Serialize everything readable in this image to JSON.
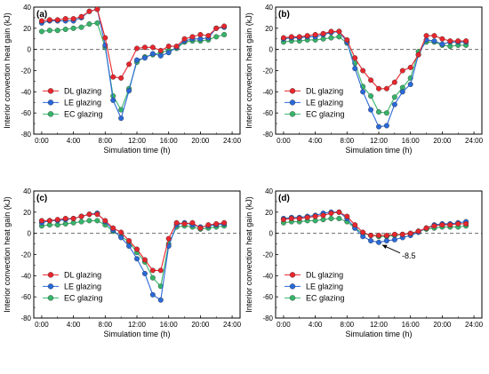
{
  "figure": {
    "ylabel": "Interior convection heat gain (kJ)",
    "xlabel": "Simulation time (h)"
  },
  "series_styles": [
    {
      "name": "DL glazing",
      "color": "#e8262d"
    },
    {
      "name": "LE glazing",
      "color": "#2a69d8"
    },
    {
      "name": "EC glazing",
      "color": "#37b46a"
    }
  ],
  "chart_data": [
    {
      "type": "line",
      "panel_label": "(a)",
      "x": [
        0,
        1,
        2,
        3,
        4,
        5,
        6,
        7,
        8,
        9,
        10,
        11,
        12,
        13,
        14,
        15,
        16,
        17,
        18,
        19,
        20,
        21,
        22,
        23
      ],
      "x_tick_labels": [
        "0:00",
        "4:00",
        "8:00",
        "12:00",
        "16:00",
        "20:00",
        "24:00"
      ],
      "x_ticks": [
        0,
        4,
        8,
        12,
        16,
        20,
        24
      ],
      "xlim": [
        -1,
        25
      ],
      "ylim": [
        -80,
        40
      ],
      "y_ticks": [
        -80,
        -60,
        -40,
        -20,
        0,
        20,
        40
      ],
      "legend": "lower-left",
      "series": [
        {
          "name": "DL glazing",
          "values": [
            27,
            28,
            28,
            29,
            29,
            31,
            36,
            38,
            11,
            -26,
            -27,
            -14,
            1,
            2,
            2,
            -1,
            3,
            3,
            10,
            12,
            14,
            13,
            20,
            22
          ]
        },
        {
          "name": "LE glazing",
          "values": [
            25,
            27,
            27,
            27,
            27,
            30,
            36,
            38,
            4,
            -48,
            -65,
            -39,
            -10,
            -8,
            -4,
            -6,
            -3,
            2,
            8,
            10,
            10,
            11,
            20,
            21
          ]
        },
        {
          "name": "EC glazing",
          "values": [
            17,
            18,
            18,
            19,
            20,
            21,
            24,
            25,
            2,
            -44,
            -57,
            -37,
            -12,
            -7,
            -5,
            -3,
            -1,
            1,
            7,
            8,
            8,
            9,
            12,
            14
          ]
        }
      ]
    },
    {
      "type": "line",
      "panel_label": "(b)",
      "x": [
        0,
        1,
        2,
        3,
        4,
        5,
        6,
        7,
        8,
        9,
        10,
        11,
        12,
        13,
        14,
        15,
        16,
        17,
        18,
        19,
        20,
        21,
        22,
        23
      ],
      "x_tick_labels": [
        "0:00",
        "4:00",
        "8:00",
        "12:00",
        "16:00",
        "20:00",
        "24:00"
      ],
      "x_ticks": [
        0,
        4,
        8,
        12,
        16,
        20,
        24
      ],
      "xlim": [
        -1,
        25
      ],
      "ylim": [
        -80,
        40
      ],
      "y_ticks": [
        -80,
        -60,
        -40,
        -20,
        0,
        20,
        40
      ],
      "legend": "lower-left",
      "series": [
        {
          "name": "DL glazing",
          "values": [
            11,
            12,
            12,
            13,
            14,
            15,
            17,
            17,
            9,
            -8,
            -20,
            -29,
            -37,
            -37,
            -31,
            -20,
            -17,
            -5,
            13,
            13,
            10,
            8,
            8,
            8
          ]
        },
        {
          "name": "LE glazing",
          "values": [
            10,
            11,
            11,
            12,
            12,
            14,
            16,
            17,
            7,
            -18,
            -40,
            -57,
            -73,
            -72,
            -52,
            -40,
            -33,
            -5,
            9,
            8,
            5,
            7,
            7,
            7
          ]
        },
        {
          "name": "EC glazing",
          "values": [
            7,
            8,
            8,
            9,
            9,
            10,
            11,
            12,
            6,
            -13,
            -35,
            -44,
            -59,
            -60,
            -45,
            -36,
            -27,
            -2,
            7,
            7,
            4,
            3,
            4,
            4
          ]
        }
      ]
    },
    {
      "type": "line",
      "panel_label": "(c)",
      "x": [
        0,
        1,
        2,
        3,
        4,
        5,
        6,
        7,
        8,
        9,
        10,
        11,
        12,
        13,
        14,
        15,
        16,
        17,
        18,
        19,
        20,
        21,
        22,
        23
      ],
      "x_tick_labels": [
        "0:00",
        "4:00",
        "8:00",
        "12:00",
        "16:00",
        "20:00",
        "24:00"
      ],
      "x_ticks": [
        0,
        4,
        8,
        12,
        16,
        20,
        24
      ],
      "xlim": [
        -1,
        25
      ],
      "ylim": [
        -80,
        40
      ],
      "y_ticks": [
        -80,
        -60,
        -40,
        -20,
        0,
        20,
        40
      ],
      "legend": "lower-left",
      "series": [
        {
          "name": "DL glazing",
          "values": [
            12,
            12,
            13,
            14,
            14,
            16,
            18,
            18,
            12,
            5,
            1,
            -7,
            -15,
            -25,
            -35,
            -35,
            -5,
            10,
            9,
            10,
            5,
            8,
            9,
            10
          ]
        },
        {
          "name": "LE glazing",
          "values": [
            10,
            12,
            12,
            13,
            14,
            16,
            18,
            19,
            11,
            3,
            -4,
            -12,
            -24,
            -38,
            -58,
            -63,
            -12,
            8,
            10,
            8,
            6,
            7,
            8,
            9
          ]
        },
        {
          "name": "EC glazing",
          "values": [
            7,
            8,
            8,
            9,
            10,
            11,
            12,
            12,
            8,
            2,
            -3,
            -8,
            -18,
            -27,
            -42,
            -50,
            -10,
            6,
            7,
            6,
            4,
            5,
            6,
            7
          ]
        }
      ]
    },
    {
      "type": "line",
      "panel_label": "(d)",
      "x": [
        0,
        1,
        2,
        3,
        4,
        5,
        6,
        7,
        8,
        9,
        10,
        11,
        12,
        13,
        14,
        15,
        16,
        17,
        18,
        19,
        20,
        21,
        22,
        23
      ],
      "x_tick_labels": [
        "0:00",
        "4:00",
        "8:00",
        "12:00",
        "16:00",
        "20:00",
        "24:00"
      ],
      "x_ticks": [
        0,
        4,
        8,
        12,
        16,
        20,
        24
      ],
      "xlim": [
        -1,
        25
      ],
      "ylim": [
        -80,
        40
      ],
      "y_ticks": [
        -80,
        -60,
        -40,
        -20,
        0,
        20,
        40
      ],
      "legend": "lower-left",
      "annotation": {
        "text": "-8.5",
        "x": 12,
        "y": -8.5
      },
      "series": [
        {
          "name": "DL glazing",
          "values": [
            13,
            14,
            14,
            15,
            16,
            17,
            19,
            20,
            16,
            8,
            1,
            -2,
            -2,
            -2,
            -1,
            -1,
            0,
            2,
            5,
            7,
            8,
            8,
            9,
            9
          ]
        },
        {
          "name": "LE glazing",
          "values": [
            14,
            15,
            15,
            16,
            17,
            19,
            20,
            20,
            14,
            5,
            -3,
            -7,
            -8.5,
            -7,
            -6,
            -4,
            -2,
            1,
            5,
            8,
            9,
            9,
            10,
            11
          ]
        },
        {
          "name": "EC glazing",
          "values": [
            10,
            11,
            11,
            12,
            12,
            13,
            14,
            14,
            11,
            5,
            0,
            -2,
            -3,
            -3,
            -2,
            -1,
            0,
            2,
            4,
            5,
            6,
            6,
            6,
            7
          ]
        }
      ]
    }
  ]
}
